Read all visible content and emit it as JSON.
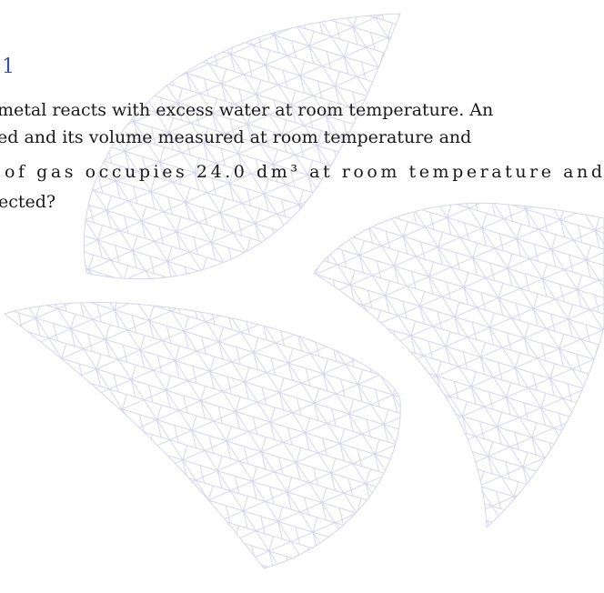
{
  "heading": "1",
  "lines": [
    "metal reacts with excess water at room temperature. An",
    "ed and its volume measured at room temperature and",
    "of gas occupies 24.0 dm³ at room temperature and",
    "ected?"
  ]
}
